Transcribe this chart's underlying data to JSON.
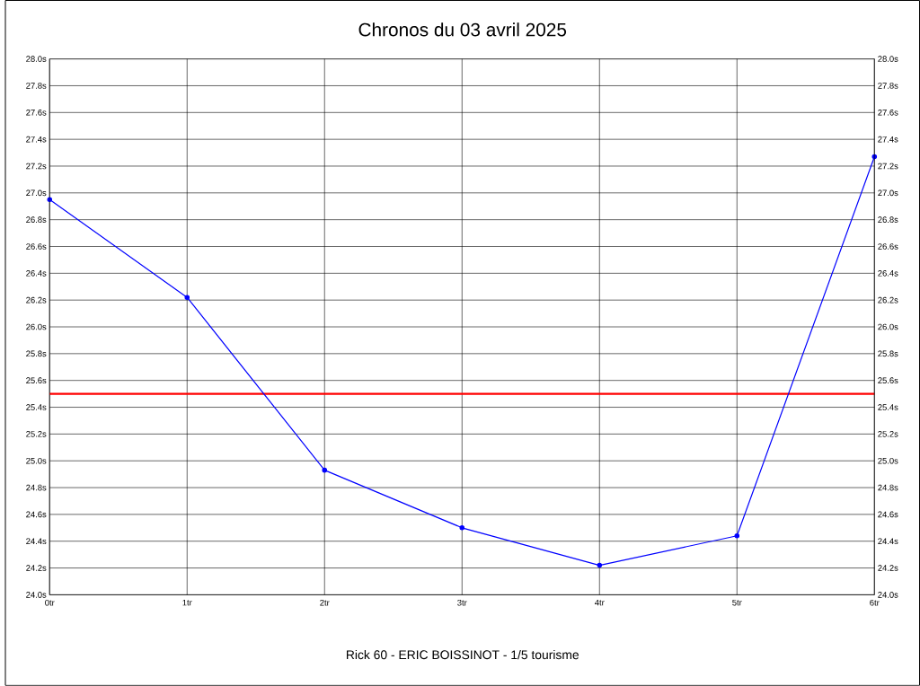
{
  "chart_data": {
    "type": "line",
    "title": "Chronos du 03 avril 2025",
    "annotations": [
      "Rick 60 - ERIC BOISSINOT - 1/5 tourisme"
    ],
    "x": [
      0,
      1,
      2,
      3,
      4,
      5,
      6
    ],
    "series": [
      {
        "color": "#0000ff",
        "values": [
          26.95,
          26.22,
          24.93,
          24.5,
          24.22,
          24.44,
          27.27
        ]
      }
    ],
    "marker": "circle",
    "line_style": "solid",
    "grid": true,
    "xlim": [
      0,
      6
    ],
    "xticks": [
      {
        "value": 0,
        "label": "0tr"
      },
      {
        "value": 1,
        "label": "1tr"
      },
      {
        "value": 2,
        "label": "2tr"
      },
      {
        "value": 3,
        "label": "3tr"
      },
      {
        "value": 4,
        "label": "4tr"
      },
      {
        "value": 5,
        "label": "5tr"
      },
      {
        "value": 6,
        "label": "6tr"
      }
    ],
    "ylim": [
      24.0,
      28.0
    ],
    "yticks": [
      {
        "value": 24.0,
        "label": "24.0s"
      },
      {
        "value": 24.2,
        "label": "24.2s"
      },
      {
        "value": 24.4,
        "label": "24.4s"
      },
      {
        "value": 24.6,
        "label": "24.6s"
      },
      {
        "value": 24.8,
        "label": "24.8s"
      },
      {
        "value": 25.0,
        "label": "25.0s"
      },
      {
        "value": 25.2,
        "label": "25.2s"
      },
      {
        "value": 25.4,
        "label": "25.4s"
      },
      {
        "value": 25.6,
        "label": "25.6s"
      },
      {
        "value": 25.8,
        "label": "25.8s"
      },
      {
        "value": 26.0,
        "label": "26.0s"
      },
      {
        "value": 26.2,
        "label": "26.2s"
      },
      {
        "value": 26.4,
        "label": "26.4s"
      },
      {
        "value": 26.6,
        "label": "26.6s"
      },
      {
        "value": 26.8,
        "label": "26.8s"
      },
      {
        "value": 27.0,
        "label": "27.0s"
      },
      {
        "value": 27.2,
        "label": "27.2s"
      },
      {
        "value": 27.4,
        "label": "27.4s"
      },
      {
        "value": 27.6,
        "label": "27.6s"
      },
      {
        "value": 27.8,
        "label": "27.8s"
      },
      {
        "value": 28.0,
        "label": "28.0s"
      }
    ],
    "y2lim": [
      24.0,
      28.0
    ],
    "y2ticks": [
      {
        "value": 24.0,
        "label": "24.0s"
      },
      {
        "value": 24.2,
        "label": "24.2s"
      },
      {
        "value": 24.4,
        "label": "24.4s"
      },
      {
        "value": 24.6,
        "label": "24.6s"
      },
      {
        "value": 24.8,
        "label": "24.8s"
      },
      {
        "value": 25.0,
        "label": "25.0s"
      },
      {
        "value": 25.2,
        "label": "25.2s"
      },
      {
        "value": 25.4,
        "label": "25.4s"
      },
      {
        "value": 25.6,
        "label": "25.6s"
      },
      {
        "value": 25.8,
        "label": "25.8s"
      },
      {
        "value": 26.0,
        "label": "26.0s"
      },
      {
        "value": 26.2,
        "label": "26.2s"
      },
      {
        "value": 26.4,
        "label": "26.4s"
      },
      {
        "value": 26.6,
        "label": "26.6s"
      },
      {
        "value": 26.8,
        "label": "26.8s"
      },
      {
        "value": 27.0,
        "label": "27.0s"
      },
      {
        "value": 27.2,
        "label": "27.2s"
      },
      {
        "value": 27.4,
        "label": "27.4s"
      },
      {
        "value": 27.6,
        "label": "27.6s"
      },
      {
        "value": 27.8,
        "label": "27.8s"
      },
      {
        "value": 28.0,
        "label": "28.0s"
      }
    ],
    "ref_lines": [
      {
        "axis": "y",
        "value": 25.5,
        "color": "#ff0000"
      }
    ]
  }
}
